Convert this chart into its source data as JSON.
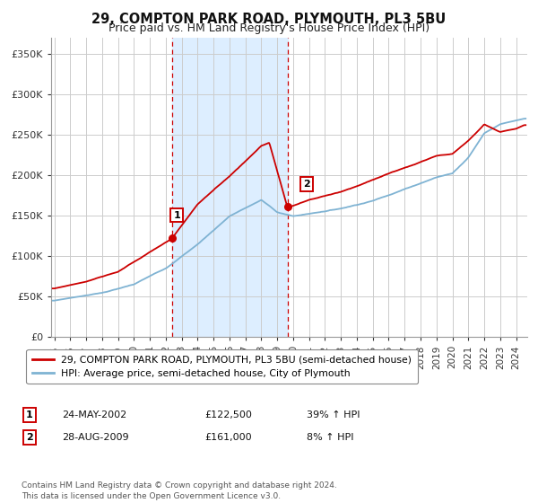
{
  "title": "29, COMPTON PARK ROAD, PLYMOUTH, PL3 5BU",
  "subtitle": "Price paid vs. HM Land Registry's House Price Index (HPI)",
  "title_fontsize": 10.5,
  "subtitle_fontsize": 9,
  "ylabel_ticks": [
    "£0",
    "£50K",
    "£100K",
    "£150K",
    "£200K",
    "£250K",
    "£300K",
    "£350K"
  ],
  "ytick_values": [
    0,
    50000,
    100000,
    150000,
    200000,
    250000,
    300000,
    350000
  ],
  "ylim": [
    0,
    370000
  ],
  "xlim_start": 1994.8,
  "xlim_end": 2024.7,
  "sale1_date": 2002.39,
  "sale1_price": 122500,
  "sale2_date": 2009.65,
  "sale2_price": 161000,
  "red_color": "#cc0000",
  "blue_color": "#7fb3d3",
  "shade_color": "#ddeeff",
  "vline_color": "#cc0000",
  "grid_color": "#cccccc",
  "background_color": "#ffffff",
  "legend_label_red": "29, COMPTON PARK ROAD, PLYMOUTH, PL3 5BU (semi-detached house)",
  "legend_label_blue": "HPI: Average price, semi-detached house, City of Plymouth",
  "table_row1": [
    "1",
    "24-MAY-2002",
    "£122,500",
    "39% ↑ HPI"
  ],
  "table_row2": [
    "2",
    "28-AUG-2009",
    "£161,000",
    "8% ↑ HPI"
  ],
  "footer_text": "Contains HM Land Registry data © Crown copyright and database right 2024.\nThis data is licensed under the Open Government Licence v3.0.",
  "xtick_years": [
    1995,
    1996,
    1997,
    1998,
    1999,
    2000,
    2001,
    2002,
    2003,
    2004,
    2005,
    2006,
    2007,
    2008,
    2009,
    2010,
    2011,
    2012,
    2013,
    2014,
    2015,
    2016,
    2017,
    2018,
    2019,
    2020,
    2021,
    2022,
    2023,
    2024
  ]
}
